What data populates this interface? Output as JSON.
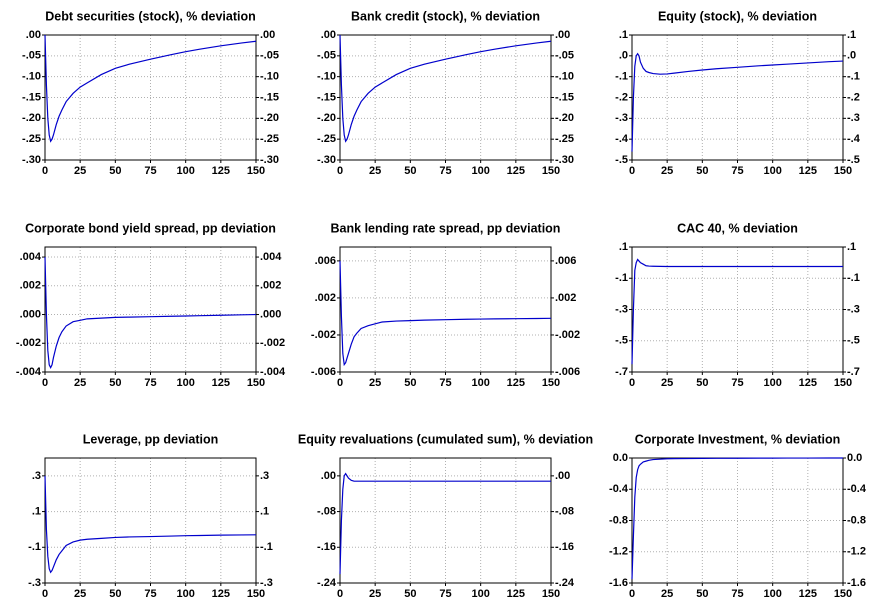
{
  "chart_data": [
    {
      "type": "line",
      "title": "Debt securities (stock), % deviation",
      "color": "#0000cc",
      "grid": true,
      "x": [
        0,
        1,
        2,
        3,
        4,
        5,
        6,
        8,
        10,
        12,
        15,
        20,
        25,
        30,
        40,
        50,
        60,
        75,
        90,
        100,
        110,
        125,
        140,
        150
      ],
      "values": [
        0,
        -0.12,
        -0.2,
        -0.24,
        -0.255,
        -0.25,
        -0.24,
        -0.215,
        -0.195,
        -0.18,
        -0.16,
        -0.14,
        -0.125,
        -0.115,
        -0.095,
        -0.08,
        -0.07,
        -0.058,
        -0.047,
        -0.04,
        -0.034,
        -0.026,
        -0.019,
        -0.015
      ],
      "xlim": [
        0,
        150
      ],
      "xticks": [
        0,
        25,
        50,
        75,
        100,
        125,
        150
      ],
      "ylim": [
        -0.3,
        0.0
      ],
      "yticks": [
        {
          "value": 0,
          "label": ".00"
        },
        {
          "value": -0.05,
          "label": "-.05"
        },
        {
          "value": -0.1,
          "label": "-.10"
        },
        {
          "value": -0.15,
          "label": "-.15"
        },
        {
          "value": -0.2,
          "label": "-.20"
        },
        {
          "value": -0.25,
          "label": "-.25"
        },
        {
          "value": -0.3,
          "label": "-.30"
        }
      ]
    },
    {
      "type": "line",
      "title": "Bank credit (stock), % deviation",
      "color": "#0000cc",
      "grid": true,
      "x": [
        0,
        1,
        2,
        3,
        4,
        5,
        6,
        8,
        10,
        12,
        15,
        20,
        25,
        30,
        40,
        50,
        60,
        75,
        90,
        100,
        110,
        125,
        140,
        150
      ],
      "values": [
        0,
        -0.12,
        -0.2,
        -0.24,
        -0.255,
        -0.25,
        -0.24,
        -0.215,
        -0.195,
        -0.18,
        -0.16,
        -0.14,
        -0.125,
        -0.115,
        -0.095,
        -0.08,
        -0.07,
        -0.058,
        -0.047,
        -0.04,
        -0.034,
        -0.026,
        -0.019,
        -0.015
      ],
      "xlim": [
        0,
        150
      ],
      "xticks": [
        0,
        25,
        50,
        75,
        100,
        125,
        150
      ],
      "ylim": [
        -0.3,
        0.0
      ],
      "yticks": [
        {
          "value": 0,
          "label": ".00"
        },
        {
          "value": -0.05,
          "label": "-.05"
        },
        {
          "value": -0.1,
          "label": "-.10"
        },
        {
          "value": -0.15,
          "label": "-.15"
        },
        {
          "value": -0.2,
          "label": "-.20"
        },
        {
          "value": -0.25,
          "label": "-.25"
        },
        {
          "value": -0.3,
          "label": "-.30"
        }
      ]
    },
    {
      "type": "line",
      "title": "Equity (stock), % deviation",
      "color": "#0000cc",
      "grid": true,
      "x": [
        0,
        1,
        2,
        3,
        4,
        5,
        6,
        8,
        10,
        12,
        15,
        20,
        25,
        30,
        40,
        50,
        60,
        75,
        90,
        100,
        110,
        125,
        140,
        150
      ],
      "values": [
        -0.46,
        -0.2,
        -0.05,
        0.0,
        0.01,
        0.0,
        -0.03,
        -0.06,
        -0.075,
        -0.08,
        -0.085,
        -0.088,
        -0.087,
        -0.083,
        -0.075,
        -0.068,
        -0.062,
        -0.055,
        -0.048,
        -0.044,
        -0.04,
        -0.034,
        -0.028,
        -0.025
      ],
      "xlim": [
        0,
        150
      ],
      "xticks": [
        0,
        25,
        50,
        75,
        100,
        125,
        150
      ],
      "ylim": [
        -0.5,
        0.1
      ],
      "yticks": [
        {
          "value": 0.1,
          "label": ".1"
        },
        {
          "value": 0,
          "label": ".0"
        },
        {
          "value": -0.1,
          "label": "-.1"
        },
        {
          "value": -0.2,
          "label": "-.2"
        },
        {
          "value": -0.3,
          "label": "-.3"
        },
        {
          "value": -0.4,
          "label": "-.4"
        },
        {
          "value": -0.5,
          "label": "-.5"
        }
      ]
    },
    {
      "type": "line",
      "title": "Corporate bond yield spread, pp deviation",
      "color": "#0000cc",
      "grid": true,
      "x": [
        0,
        1,
        2,
        3,
        4,
        5,
        6,
        8,
        10,
        12,
        15,
        20,
        25,
        30,
        40,
        50,
        60,
        75,
        90,
        100,
        110,
        125,
        140,
        150
      ],
      "values": [
        0.004,
        0.0,
        -0.0025,
        -0.0035,
        -0.0037,
        -0.0035,
        -0.003,
        -0.0022,
        -0.0016,
        -0.0012,
        -0.0008,
        -0.0005,
        -0.0004,
        -0.0003,
        -0.00025,
        -0.0002,
        -0.00018,
        -0.00015,
        -0.00012,
        -0.0001,
        -8e-05,
        -5e-05,
        -2e-05,
        0.0
      ],
      "xlim": [
        0,
        150
      ],
      "xticks": [
        0,
        25,
        50,
        75,
        100,
        125,
        150
      ],
      "ylim": [
        -0.004,
        0.0047
      ],
      "yticks": [
        {
          "value": 0.004,
          "label": ".004"
        },
        {
          "value": 0.002,
          "label": ".002"
        },
        {
          "value": 0,
          "label": ".000"
        },
        {
          "value": -0.002,
          "label": "-.002"
        },
        {
          "value": -0.004,
          "label": "-.004"
        }
      ]
    },
    {
      "type": "line",
      "title": "Bank lending rate spread, pp deviation",
      "color": "#0000cc",
      "grid": true,
      "x": [
        0,
        1,
        2,
        3,
        4,
        5,
        6,
        8,
        10,
        12,
        15,
        20,
        25,
        30,
        40,
        50,
        60,
        75,
        90,
        100,
        110,
        125,
        140,
        150
      ],
      "values": [
        0.006,
        0.0,
        -0.004,
        -0.0052,
        -0.005,
        -0.0045,
        -0.004,
        -0.003,
        -0.0022,
        -0.0018,
        -0.0013,
        -0.001,
        -0.0008,
        -0.0006,
        -0.0005,
        -0.00045,
        -0.0004,
        -0.00035,
        -0.0003,
        -0.00028,
        -0.00026,
        -0.00024,
        -0.00022,
        -0.0002
      ],
      "xlim": [
        0,
        150
      ],
      "xticks": [
        0,
        25,
        50,
        75,
        100,
        125,
        150
      ],
      "ylim": [
        -0.006,
        0.0075
      ],
      "yticks": [
        {
          "value": 0.006,
          "label": ".006"
        },
        {
          "value": 0.002,
          "label": ".002"
        },
        {
          "value": -0.002,
          "label": "-.002"
        },
        {
          "value": -0.006,
          "label": "-.006"
        }
      ]
    },
    {
      "type": "line",
      "title": "CAC 40, % deviation",
      "color": "#0000cc",
      "grid": true,
      "x": [
        0,
        1,
        2,
        3,
        4,
        5,
        6,
        8,
        10,
        12,
        15,
        20,
        25,
        30,
        40,
        50,
        60,
        75,
        90,
        100,
        110,
        125,
        140,
        150
      ],
      "values": [
        -0.65,
        -0.3,
        -0.05,
        0.0,
        0.02,
        0.01,
        0.0,
        -0.01,
        -0.02,
        -0.022,
        -0.023,
        -0.024,
        -0.025,
        -0.025,
        -0.025,
        -0.025,
        -0.025,
        -0.025,
        -0.025,
        -0.025,
        -0.025,
        -0.025,
        -0.025,
        -0.025
      ],
      "xlim": [
        0,
        150
      ],
      "xticks": [
        0,
        25,
        50,
        75,
        100,
        125,
        150
      ],
      "ylim": [
        -0.7,
        0.1
      ],
      "yticks": [
        {
          "value": 0.1,
          "label": ".1"
        },
        {
          "value": -0.1,
          "label": "-.1"
        },
        {
          "value": -0.3,
          "label": "-.3"
        },
        {
          "value": -0.5,
          "label": "-.5"
        },
        {
          "value": -0.7,
          "label": "-.7"
        }
      ]
    },
    {
      "type": "line",
      "title": "Leverage, pp deviation",
      "color": "#0000cc",
      "grid": true,
      "x": [
        0,
        1,
        2,
        3,
        4,
        5,
        6,
        8,
        10,
        12,
        15,
        20,
        25,
        30,
        40,
        50,
        60,
        75,
        90,
        100,
        110,
        125,
        140,
        150
      ],
      "values": [
        0.3,
        0.0,
        -0.15,
        -0.22,
        -0.24,
        -0.23,
        -0.21,
        -0.17,
        -0.14,
        -0.12,
        -0.09,
        -0.07,
        -0.06,
        -0.055,
        -0.05,
        -0.045,
        -0.042,
        -0.04,
        -0.037,
        -0.035,
        -0.034,
        -0.032,
        -0.031,
        -0.03
      ],
      "xlim": [
        0,
        150
      ],
      "xticks": [
        0,
        25,
        50,
        75,
        100,
        125,
        150
      ],
      "ylim": [
        -0.3,
        0.4
      ],
      "yticks": [
        {
          "value": 0.3,
          "label": ".3"
        },
        {
          "value": 0.1,
          "label": ".1"
        },
        {
          "value": -0.1,
          "label": "-.1"
        },
        {
          "value": -0.3,
          "label": "-.3"
        }
      ]
    },
    {
      "type": "line",
      "title": "Equity revaluations (cumulated sum), % deviation",
      "color": "#0000cc",
      "grid": true,
      "x": [
        0,
        1,
        2,
        3,
        4,
        5,
        6,
        8,
        10,
        12,
        15,
        20,
        25,
        30,
        40,
        50,
        60,
        75,
        90,
        100,
        110,
        125,
        140,
        150
      ],
      "values": [
        -0.22,
        -0.1,
        -0.03,
        0.0,
        0.005,
        0.0,
        -0.005,
        -0.01,
        -0.012,
        -0.012,
        -0.012,
        -0.012,
        -0.012,
        -0.012,
        -0.012,
        -0.012,
        -0.012,
        -0.012,
        -0.012,
        -0.012,
        -0.012,
        -0.012,
        -0.012,
        -0.012
      ],
      "xlim": [
        0,
        150
      ],
      "xticks": [
        0,
        25,
        50,
        75,
        100,
        125,
        150
      ],
      "ylim": [
        -0.24,
        0.04
      ],
      "yticks": [
        {
          "value": 0,
          "label": ".00"
        },
        {
          "value": -0.08,
          "label": "-.08"
        },
        {
          "value": -0.16,
          "label": "-.16"
        },
        {
          "value": -0.24,
          "label": "-.24"
        }
      ]
    },
    {
      "type": "line",
      "title": "Corporate Investment, % deviation",
      "color": "#0000cc",
      "grid": true,
      "x": [
        0,
        1,
        2,
        3,
        4,
        5,
        6,
        8,
        10,
        12,
        15,
        20,
        25,
        30,
        40,
        50,
        60,
        75,
        90,
        100,
        110,
        125,
        140,
        150
      ],
      "values": [
        -1.55,
        -1.0,
        -0.5,
        -0.25,
        -0.15,
        -0.1,
        -0.08,
        -0.05,
        -0.04,
        -0.03,
        -0.02,
        -0.015,
        -0.01,
        -0.008,
        -0.006,
        -0.005,
        -0.004,
        -0.003,
        -0.002,
        -0.002,
        -0.001,
        -0.001,
        0.0,
        0.0
      ],
      "xlim": [
        0,
        150
      ],
      "xticks": [
        0,
        25,
        50,
        75,
        100,
        125,
        150
      ],
      "ylim": [
        -1.6,
        0.0
      ],
      "yticks": [
        {
          "value": 0,
          "label": "0.0"
        },
        {
          "value": -0.4,
          "label": "-0.4"
        },
        {
          "value": -0.8,
          "label": "-0.8"
        },
        {
          "value": -1.2,
          "label": "-1.2"
        },
        {
          "value": -1.6,
          "label": "-1.6"
        }
      ]
    }
  ]
}
